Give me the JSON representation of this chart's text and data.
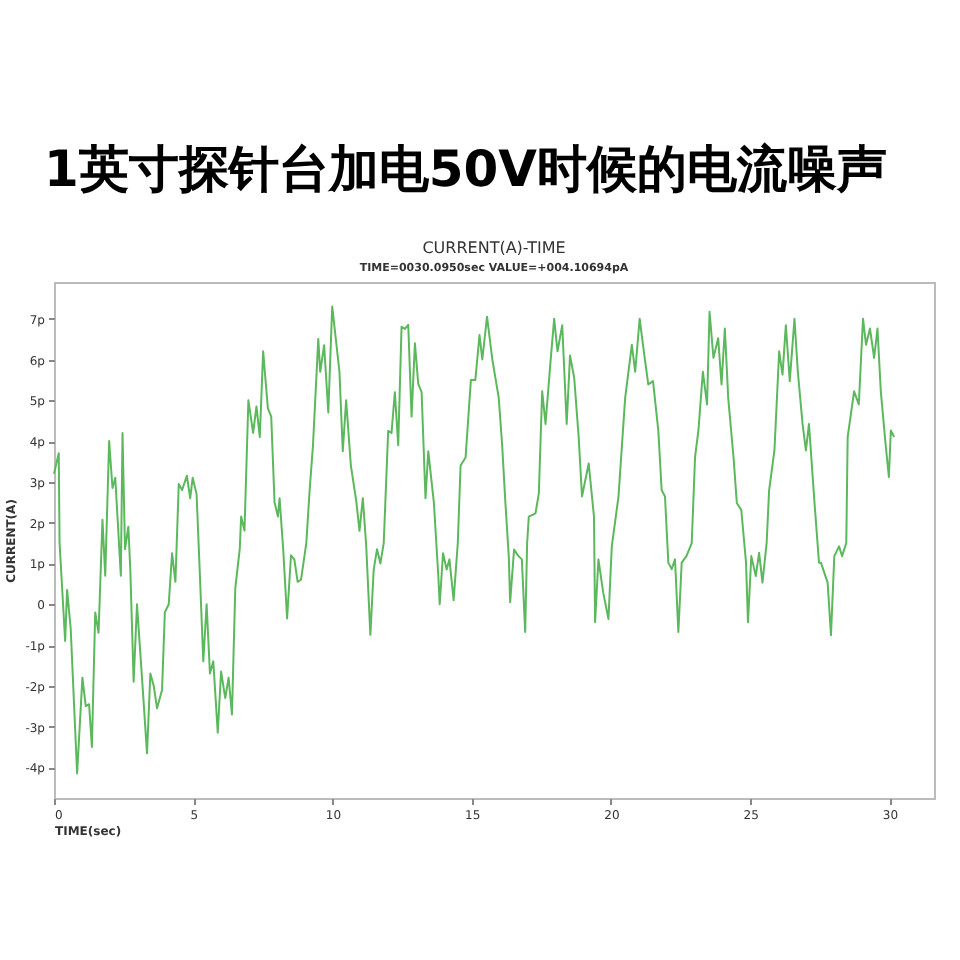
{
  "chart_data": {
    "type": "line",
    "title": "1英寸探针台加电50V时候的电流噪声",
    "subtitle": "CURRENT(A)-TIME",
    "annotations": [
      "TIME=0030.0950sec  VALUE=+004.10694pA"
    ],
    "xlabel": "TIME(sec)",
    "ylabel": "CURRENT(A)",
    "xlim": [
      0,
      31.6
    ],
    "xticks": [
      0,
      5,
      10,
      15,
      20,
      25,
      30
    ],
    "ylim": [
      -4.75,
      7.9
    ],
    "yticks": [
      {
        "value": -4,
        "label": "-4p"
      },
      {
        "value": -3,
        "label": "-3p"
      },
      {
        "value": -2,
        "label": "-2p"
      },
      {
        "value": -1,
        "label": "-1p"
      },
      {
        "value": 0,
        "label": "0"
      },
      {
        "value": 1,
        "label": "1p"
      },
      {
        "value": 2,
        "label": "2p"
      },
      {
        "value": 3,
        "label": "3p"
      },
      {
        "value": 4,
        "label": "4p"
      },
      {
        "value": 5,
        "label": "5p"
      },
      {
        "value": 6,
        "label": "6p"
      },
      {
        "value": 7,
        "label": "7p"
      }
    ],
    "grid": false,
    "marker": "none",
    "line_style": "solid",
    "series": [
      {
        "color": "#5cb85c",
        "x": [
          0,
          0.17,
          0.2,
          0.4,
          0.47,
          0.6,
          0.83,
          1.02,
          1.14,
          1.26,
          1.36,
          1.48,
          1.6,
          1.74,
          1.84,
          1.98,
          2.1,
          2.2,
          2.4,
          2.46,
          2.55,
          2.67,
          2.74,
          2.86,
          2.98,
          3.15,
          3.34,
          3.46,
          3.58,
          3.7,
          3.88,
          3.98,
          4.12,
          4.24,
          4.36,
          4.48,
          4.6,
          4.77,
          4.89,
          4.98,
          5.12,
          5.24,
          5.36,
          5.48,
          5.6,
          5.72,
          5.88,
          6.0,
          6.15,
          6.27,
          6.39,
          6.51,
          6.67,
          6.72,
          6.84,
          6.98,
          7.15,
          7.27,
          7.39,
          7.51,
          7.68,
          7.8,
          7.92,
          8.04,
          8.1,
          8.23,
          8.37,
          8.51,
          8.63,
          8.75,
          8.87,
          9.06,
          9.18,
          9.3,
          9.49,
          9.56,
          9.7,
          9.85,
          9.99,
          10.25,
          10.37,
          10.49,
          10.66,
          10.85,
          10.97,
          11.09,
          11.21,
          11.36,
          11.48,
          11.6,
          11.72,
          11.84,
          12.0,
          12.12,
          12.24,
          12.36,
          12.48,
          12.6,
          12.72,
          12.84,
          12.96,
          13.08,
          13.2,
          13.34,
          13.44,
          13.64,
          13.8,
          13.85,
          13.97,
          14.1,
          14.2,
          14.35,
          14.5,
          14.6,
          14.78,
          14.97,
          15.13,
          15.28,
          15.38,
          15.55,
          15.74,
          15.97,
          16.09,
          16.21,
          16.33,
          16.38,
          16.52,
          16.68,
          16.8,
          16.92,
          16.99,
          17.05,
          17.29,
          17.41,
          17.53,
          17.65,
          17.82,
          17.96,
          18.08,
          18.25,
          18.41,
          18.53,
          18.68,
          18.84,
          18.96,
          19.2,
          19.39,
          19.43,
          19.55,
          19.72,
          19.91,
          20.03,
          20.27,
          20.51,
          20.75,
          20.87,
          21.03,
          21.18,
          21.34,
          21.51,
          21.7,
          21.82,
          21.94,
          22.06,
          22.18,
          22.3,
          22.42,
          22.54,
          22.71,
          22.9,
          23.02,
          23.14,
          23.3,
          23.45,
          23.54,
          23.68,
          23.85,
          23.97,
          24.09,
          24.21,
          24.4,
          24.52,
          24.68,
          24.85,
          24.92,
          25.04,
          25.2,
          25.32,
          25.44,
          25.59,
          25.68,
          25.87,
          26.04,
          26.16,
          26.28,
          26.42,
          26.59,
          26.71,
          26.88,
          27.0,
          27.11,
          27.31,
          27.47,
          27.54,
          27.78,
          27.9,
          28.02,
          28.19,
          28.3,
          28.45,
          28.5,
          28.73,
          28.9,
          29.05,
          29.16,
          29.3,
          29.45,
          29.57,
          29.69,
          29.86,
          29.98,
          30.05,
          30.17
        ],
        "values": [
          3.2,
          3.7,
          1.5,
          -0.9,
          0.35,
          -0.6,
          -4.15,
          -1.8,
          -2.5,
          -2.45,
          -3.5,
          -0.2,
          -0.7,
          2.07,
          0.7,
          4.0,
          2.85,
          3.1,
          0.7,
          4.2,
          1.35,
          1.9,
          0.85,
          -1.9,
          0,
          -1.7,
          -3.65,
          -1.7,
          -2.0,
          -2.55,
          -2.1,
          -0.2,
          0,
          1.25,
          0.55,
          2.95,
          2.8,
          3.15,
          2.6,
          3.1,
          2.7,
          0.7,
          -1.4,
          0,
          -1.7,
          -1.4,
          -3.15,
          -1.65,
          -2.3,
          -1.8,
          -2.7,
          0.4,
          1.35,
          2.15,
          1.8,
          5.0,
          4.2,
          4.85,
          4.1,
          6.2,
          4.8,
          4.6,
          2.5,
          2.15,
          2.6,
          1.35,
          -0.35,
          1.2,
          1.1,
          0.55,
          0.6,
          1.5,
          2.8,
          3.9,
          6.5,
          5.7,
          6.35,
          4.7,
          7.3,
          5.7,
          3.75,
          5.0,
          3.4,
          2.55,
          1.8,
          2.6,
          1.45,
          -0.75,
          0.85,
          1.35,
          1.0,
          1.5,
          4.25,
          4.2,
          5.2,
          3.9,
          6.8,
          6.75,
          6.85,
          4.6,
          6.4,
          5.4,
          5.2,
          2.6,
          3.75,
          2.5,
          0.7,
          0,
          1.25,
          0.85,
          1.1,
          0.1,
          1.5,
          3.4,
          3.6,
          5.5,
          5.5,
          6.6,
          6.0,
          7.05,
          6.0,
          5.06,
          3.93,
          2.48,
          1.18,
          0.05,
          1.34,
          1.18,
          1.1,
          -0.68,
          1.5,
          2.15,
          2.23,
          2.72,
          5.22,
          4.42,
          5.87,
          7.0,
          6.2,
          6.84,
          4.42,
          6.1,
          5.55,
          4.1,
          2.64,
          3.45,
          2.15,
          -0.44,
          1.1,
          0.29,
          -0.36,
          1.42,
          2.64,
          5.06,
          6.36,
          5.7,
          7.0,
          6.2,
          5.39,
          5.47,
          4.26,
          2.8,
          2.64,
          1.02,
          0.86,
          1.1,
          -0.68,
          1.02,
          1.18,
          1.5,
          3.61,
          4.26,
          5.7,
          4.9,
          7.17,
          6.04,
          6.52,
          5.39,
          6.76,
          5.06,
          3.61,
          2.48,
          2.31,
          1.02,
          -0.44,
          1.18,
          0.69,
          1.26,
          0.53,
          1.5,
          2.8,
          3.77,
          6.2,
          5.63,
          6.84,
          5.47,
          7.0,
          5.7,
          4.42,
          3.77,
          4.42,
          2.48,
          1.02,
          1.02,
          0.53,
          -0.76,
          1.18,
          1.42,
          1.18,
          1.5,
          4.1,
          5.22,
          4.9,
          7.0,
          6.36,
          6.76,
          6.04,
          6.76,
          5.22,
          3.93,
          3.12,
          4.26,
          4.1
        ]
      }
    ]
  }
}
